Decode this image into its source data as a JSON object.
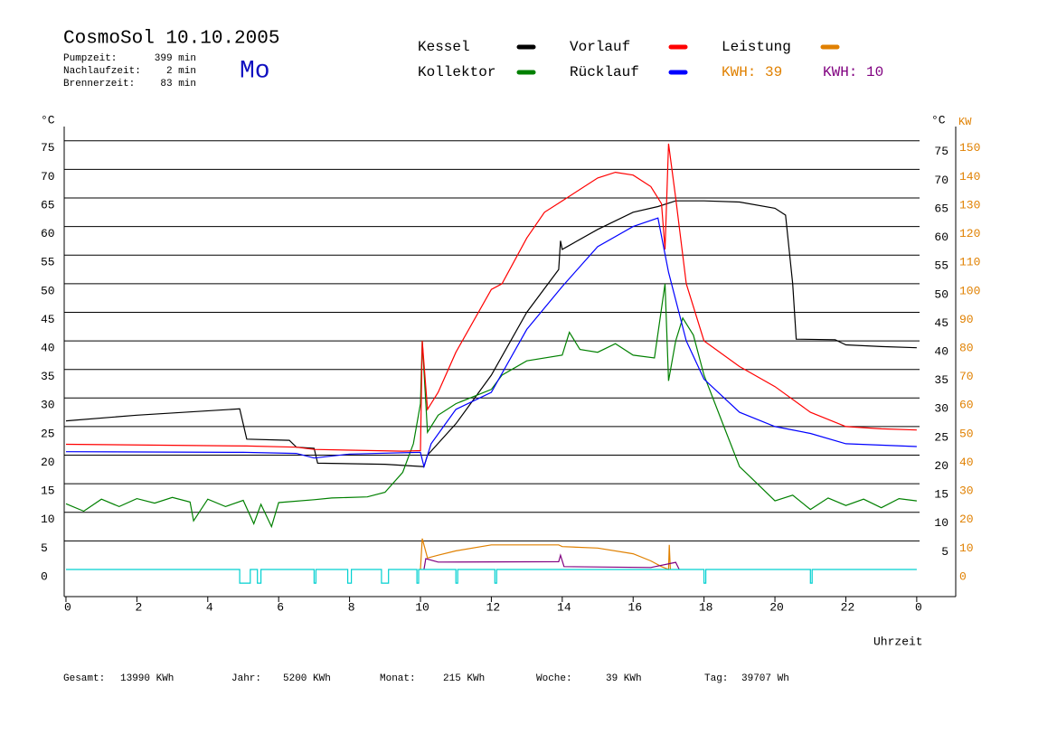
{
  "header": {
    "title": "CosmoSol 10.10.2005",
    "weekday": "Mo",
    "stats": [
      {
        "label": "Pumpzeit:",
        "value": "399 min"
      },
      {
        "label": "Nachlaufzeit:",
        "value": "2 min"
      },
      {
        "label": "Brennerzeit:",
        "value": "83 min"
      }
    ]
  },
  "chart_data": {
    "type": "line",
    "y_label_left": "°C",
    "y_label_right": "°C",
    "y2_label": "KW",
    "x_label": "Uhrzeit",
    "xlim": [
      -0.05,
      25.1
    ],
    "xticks": [
      0,
      2,
      4,
      6,
      8,
      10,
      12,
      14,
      16,
      18,
      20,
      22,
      {
        "value": 24,
        "label": "0"
      }
    ],
    "ylim": [
      -4.75,
      77.5
    ],
    "yticks": [
      0,
      5,
      10,
      15,
      20,
      25,
      30,
      35,
      40,
      45,
      50,
      55,
      60,
      65,
      70,
      75
    ],
    "yticks_right": [
      5,
      10,
      15,
      20,
      25,
      30,
      35,
      40,
      45,
      50,
      55,
      60,
      65,
      70,
      75
    ],
    "y2lim": [
      -9.5,
      155
    ],
    "y2ticks": [
      0,
      10,
      20,
      30,
      40,
      50,
      60,
      70,
      80,
      90,
      100,
      110,
      120,
      130,
      140,
      150
    ],
    "grid": true,
    "series": [
      {
        "name": "Kessel",
        "color": "#000000",
        "x": [
          0,
          2,
          4.9,
          5.1,
          6.3,
          6.5,
          7.0,
          7.1,
          9.0,
          10.1,
          10.2,
          11,
          12,
          13,
          13.9,
          13.95,
          14,
          15,
          16,
          16.7,
          17.2,
          18,
          19,
          20,
          20.3,
          20.5,
          20.6,
          21.7,
          22,
          23,
          24
        ],
        "values": [
          26,
          27,
          28.1,
          22.8,
          22.6,
          21.4,
          21.2,
          18.6,
          18.4,
          18,
          20,
          25.5,
          34,
          45,
          52.5,
          57.5,
          56,
          59.5,
          62.5,
          63.5,
          64.5,
          64.5,
          64.3,
          63.2,
          62,
          50,
          40.3,
          40.2,
          39.3,
          39,
          38.8
        ]
      },
      {
        "name": "Kollektor",
        "color": "#008000",
        "x": [
          0,
          0.5,
          1,
          1.5,
          2,
          2.5,
          3,
          3.5,
          3.6,
          4,
          4.5,
          5,
          5.3,
          5.5,
          5.8,
          6,
          7,
          7.5,
          8.5,
          9,
          9.5,
          9.8,
          10,
          10.05,
          10.2,
          10.5,
          11,
          12,
          12.3,
          13,
          14,
          14.2,
          14.5,
          15,
          15.5,
          16,
          16.6,
          16.9,
          17.0,
          17.2,
          17.4,
          17.7,
          18,
          18.5,
          19,
          19.5,
          20,
          20.5,
          21,
          21.5,
          22,
          22.5,
          23,
          23.5,
          24
        ],
        "values": [
          11.5,
          10.2,
          12.3,
          11,
          12.4,
          11.6,
          12.6,
          11.8,
          8.5,
          12.3,
          11,
          12.1,
          8,
          11.4,
          7.5,
          11.7,
          12.2,
          12.5,
          12.7,
          13.5,
          17,
          22,
          29,
          40,
          24,
          27,
          29,
          31.5,
          34,
          36.5,
          37.5,
          41.5,
          38.5,
          38,
          39.5,
          37.5,
          37,
          50,
          33,
          40,
          44,
          41,
          34,
          26,
          18,
          15,
          12,
          13,
          10.5,
          12.5,
          11.2,
          12.3,
          10.8,
          12.4,
          12
        ]
      },
      {
        "name": "Vorlauf",
        "color": "#ff0000",
        "x": [
          0,
          5.1,
          6.5,
          7,
          9.5,
          10.0,
          10.05,
          10.2,
          10.5,
          11,
          12,
          12.3,
          13,
          13.5,
          14,
          15,
          15.5,
          16,
          16.5,
          16.8,
          16.9,
          17.0,
          17.2,
          17.5,
          18,
          19,
          20,
          21,
          22,
          23,
          24
        ],
        "values": [
          21.9,
          21.6,
          21.4,
          21,
          20.7,
          20.8,
          40,
          28,
          31,
          38,
          49,
          50,
          58,
          62.5,
          64.5,
          68.5,
          69.5,
          69,
          67,
          64,
          56,
          74.5,
          65,
          50,
          40,
          35.5,
          32,
          27.5,
          25,
          24.6,
          24.4
        ]
      },
      {
        "name": "Rücklauf",
        "color": "#0000ff",
        "x": [
          0,
          5,
          6.5,
          7,
          8,
          10,
          10.1,
          10.3,
          11,
          12,
          13,
          14,
          15,
          16,
          16.7,
          17,
          17.5,
          18,
          19,
          20,
          21,
          22,
          24
        ],
        "values": [
          20.6,
          20.5,
          20.3,
          19.5,
          20.2,
          20.5,
          18,
          22,
          28,
          31,
          42,
          49.5,
          56.5,
          60,
          61.5,
          52,
          40,
          33.3,
          27.5,
          25,
          23.8,
          22,
          21.5
        ]
      },
      {
        "name": "Leistung",
        "color": "#e08000",
        "axis": "y2",
        "kwh_label": "KWH: 39",
        "x": [
          10.0,
          10.05,
          10.2,
          10.5,
          11,
          12,
          13,
          13.9,
          14.0,
          15,
          16,
          16.5,
          16.8,
          17,
          17.02,
          17.05
        ],
        "values": [
          0,
          10.8,
          4,
          5,
          6.5,
          8.6,
          8.6,
          8.6,
          8,
          7.5,
          5.5,
          3,
          1,
          0,
          8.6,
          0
        ]
      },
      {
        "color": "#800080",
        "axis": "y2",
        "kwh_label": "KWH: 10",
        "x": [
          10.1,
          10.15,
          10.5,
          13.9,
          13.95,
          14.05,
          16.5,
          17.2,
          17.3
        ],
        "values": [
          0,
          3.8,
          2.6,
          2.7,
          5,
          1,
          0.7,
          2.5,
          0
        ]
      },
      {
        "color": "#00d0d0",
        "x": [
          0,
          4.9,
          4.9,
          5.2,
          5.2,
          5.4,
          5.4,
          5.5,
          5.5,
          7.0,
          7.0,
          7.05,
          7.05,
          7.95,
          7.95,
          8.05,
          8.05,
          8.9,
          8.9,
          9.1,
          9.1,
          9.9,
          9.9,
          9.95,
          9.95,
          11.0,
          11.0,
          11.05,
          11.05,
          12.1,
          12.1,
          12.15,
          12.15,
          18.0,
          18.0,
          18.05,
          18.05,
          21.0,
          21.0,
          21.05,
          21.05,
          24
        ],
        "values": [
          0,
          0,
          -2.4,
          -2.4,
          0,
          0,
          -2.4,
          -2.4,
          0,
          0,
          -2.4,
          -2.4,
          0,
          0,
          -2.4,
          -2.4,
          0,
          0,
          -2.4,
          -2.4,
          0,
          0,
          -2.4,
          -2.4,
          0,
          0,
          -2.4,
          -2.4,
          0,
          0,
          -2.4,
          -2.4,
          0,
          0,
          -2.4,
          -2.4,
          0,
          0,
          -2.4,
          -2.4,
          0,
          0
        ]
      }
    ]
  },
  "footer": [
    {
      "label": "Gesamt:",
      "value": "13990 KWh"
    },
    {
      "label": "Jahr:",
      "value": "5200 KWh"
    },
    {
      "label": "Monat:",
      "value": "215 KWh"
    },
    {
      "label": "Woche:",
      "value": "39 KWh"
    },
    {
      "label": "Tag:",
      "value": "39707 Wh"
    }
  ]
}
